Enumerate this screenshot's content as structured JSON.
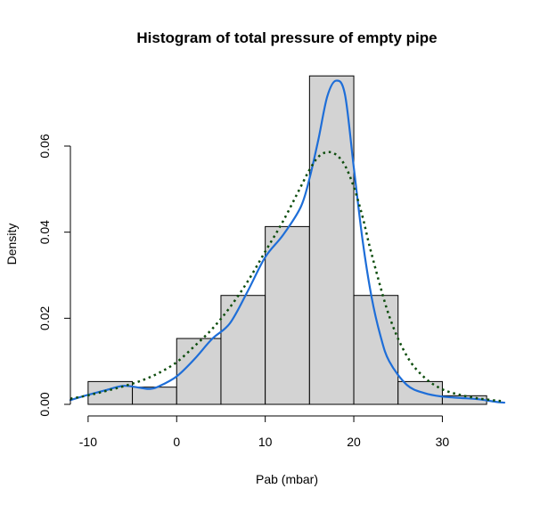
{
  "chart_data": {
    "type": "histogram",
    "title": "Histogram of total pressure of empty pipe",
    "xlabel": "Pab (mbar)",
    "ylabel": "Density",
    "xlim": [
      -12,
      37
    ],
    "ylim": [
      0,
      0.078
    ],
    "x_ticks": [
      -10,
      0,
      10,
      20,
      30
    ],
    "x_tick_labels": [
      "-10",
      "0",
      "10",
      "20",
      "30"
    ],
    "y_ticks": [
      0,
      0.02,
      0.04,
      0.06
    ],
    "y_tick_labels": [
      "0.00",
      "0.02",
      "0.04",
      "0.06"
    ],
    "bins": [
      {
        "x0": -10,
        "x1": -5,
        "density": 0.0053
      },
      {
        "x0": -5,
        "x1": 0,
        "density": 0.004
      },
      {
        "x0": 0,
        "x1": 5,
        "density": 0.0153
      },
      {
        "x0": 5,
        "x1": 10,
        "density": 0.0253
      },
      {
        "x0": 10,
        "x1": 15,
        "density": 0.0413
      },
      {
        "x0": 15,
        "x1": 20,
        "density": 0.0763
      },
      {
        "x0": 20,
        "x1": 25,
        "density": 0.0253
      },
      {
        "x0": 25,
        "x1": 30,
        "density": 0.0053
      },
      {
        "x0": 30,
        "x1": 35,
        "density": 0.002
      }
    ],
    "series": [
      {
        "kind": "solid-line",
        "color": "#1e6ed8",
        "x": [
          -12,
          -10,
          -8,
          -6,
          -4,
          -3,
          -2,
          0,
          2,
          4,
          6,
          8,
          10,
          12,
          14,
          15,
          16,
          17,
          18,
          19,
          20,
          21,
          22,
          23,
          24,
          26,
          28,
          30,
          32,
          34,
          36,
          37
        ],
        "y": [
          0.001,
          0.0022,
          0.0033,
          0.0043,
          0.0038,
          0.0036,
          0.0042,
          0.0065,
          0.0105,
          0.0152,
          0.0188,
          0.0262,
          0.0342,
          0.0393,
          0.0458,
          0.0525,
          0.0615,
          0.0715,
          0.0752,
          0.072,
          0.055,
          0.038,
          0.025,
          0.016,
          0.01,
          0.0045,
          0.0026,
          0.0018,
          0.0015,
          0.0012,
          0.0006,
          0.0004
        ]
      },
      {
        "kind": "dotted-line",
        "color": "#0d4d0d",
        "x": [
          -12,
          -10,
          -8,
          -6,
          -4,
          -2,
          0,
          2,
          4,
          6,
          8,
          10,
          12,
          14,
          15,
          16,
          17,
          18,
          19,
          20,
          21,
          22,
          24,
          26,
          28,
          30,
          32,
          34,
          36,
          37
        ],
        "y": [
          0.0013,
          0.0021,
          0.0031,
          0.0042,
          0.0055,
          0.0073,
          0.0098,
          0.0135,
          0.0175,
          0.0225,
          0.0285,
          0.0355,
          0.0425,
          0.0505,
          0.0545,
          0.0575,
          0.0586,
          0.058,
          0.0555,
          0.0505,
          0.0435,
          0.035,
          0.0205,
          0.0112,
          0.0062,
          0.0035,
          0.0022,
          0.0014,
          0.0009,
          0.0007
        ]
      }
    ]
  }
}
